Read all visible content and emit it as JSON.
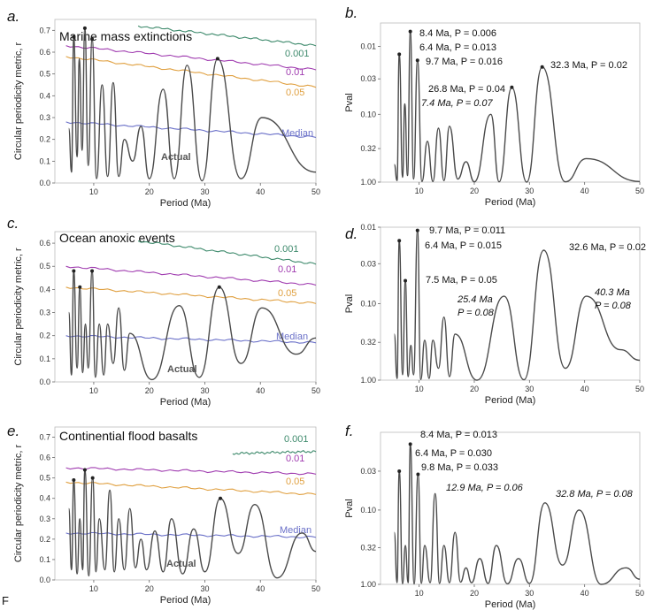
{
  "footer_letter": "F",
  "colors": {
    "curve": "#4a4a4a",
    "c001": "#3e8a6c",
    "c01": "#a03cb0",
    "c05": "#e0a040",
    "median": "#6a70c8"
  },
  "chart_data": [
    {
      "id": "a",
      "type": "line",
      "panel_label": "a.",
      "title": "Marine mass extinctions",
      "xlabel": "Period (Ma)",
      "ylabel": "Circular periodicity metric, r",
      "xlim": [
        3,
        50
      ],
      "ylim": [
        0,
        0.75
      ],
      "xticks": [
        "10",
        "20",
        "30",
        "40",
        "50"
      ],
      "yticks": [
        "0.0",
        "0.1",
        "0.2",
        "0.3",
        "0.4",
        "0.5",
        "0.6",
        "0.7"
      ],
      "actual_label": "Actual",
      "thresholds": [
        {
          "name": "0.001",
          "x": [
            18,
            50
          ],
          "y": [
            0.72,
            0.63
          ]
        },
        {
          "name": "0.01",
          "x": [
            5,
            50
          ],
          "y": [
            0.63,
            0.52
          ]
        },
        {
          "name": "0.05",
          "x": [
            5,
            50
          ],
          "y": [
            0.58,
            0.44
          ]
        },
        {
          "name": "Median",
          "x": [
            5,
            50
          ],
          "y": [
            0.28,
            0.21
          ]
        }
      ],
      "peaks": [
        {
          "x": 5.5,
          "y": 0.25
        },
        {
          "x": 6.4,
          "y": 0.67
        },
        {
          "x": 7.4,
          "y": 0.57
        },
        {
          "x": 8.4,
          "y": 0.71
        },
        {
          "x": 9.7,
          "y": 0.66
        },
        {
          "x": 11.5,
          "y": 0.45
        },
        {
          "x": 13.5,
          "y": 0.46
        },
        {
          "x": 15.5,
          "y": 0.2
        },
        {
          "x": 18.5,
          "y": 0.26
        },
        {
          "x": 22.5,
          "y": 0.43
        },
        {
          "x": 26.8,
          "y": 0.54
        },
        {
          "x": 32.3,
          "y": 0.57
        },
        {
          "x": 40.3,
          "y": 0.3
        },
        {
          "x": 50,
          "y": 0.05
        }
      ],
      "troughs": [
        {
          "x": 6.0,
          "y": 0.05
        },
        {
          "x": 7.0,
          "y": 0.12
        },
        {
          "x": 7.9,
          "y": 0.15
        },
        {
          "x": 9.0,
          "y": 0.08
        },
        {
          "x": 10.5,
          "y": 0.02
        },
        {
          "x": 12.5,
          "y": 0.03
        },
        {
          "x": 14.5,
          "y": 0.03
        },
        {
          "x": 17.0,
          "y": 0.1
        },
        {
          "x": 20.0,
          "y": 0.02
        },
        {
          "x": 24.5,
          "y": 0.02
        },
        {
          "x": 29.5,
          "y": 0.01
        },
        {
          "x": 36.5,
          "y": 0.02
        }
      ],
      "marked": [
        {
          "x": 6.4,
          "y": 0.67
        },
        {
          "x": 8.4,
          "y": 0.71
        },
        {
          "x": 9.7,
          "y": 0.66
        },
        {
          "x": 32.3,
          "y": 0.57
        }
      ]
    },
    {
      "id": "b",
      "type": "line",
      "panel_label": "b.",
      "xlabel": "Period (Ma)",
      "ylabel": "Pval",
      "xlim": [
        3,
        50
      ],
      "y_scale": "log",
      "ylim": [
        1.0,
        0.0045
      ],
      "xticks": [
        "10",
        "20",
        "30",
        "40",
        "50"
      ],
      "ytick_values": [
        0.01,
        0.03,
        0.1,
        0.32,
        1.0
      ],
      "yticks": [
        "0.01",
        "0.03",
        "0.10",
        "0.32",
        "1.00"
      ],
      "peaks": [
        {
          "x": 5.5,
          "y": 0.55
        },
        {
          "x": 6.4,
          "y": 0.013
        },
        {
          "x": 7.4,
          "y": 0.07
        },
        {
          "x": 8.4,
          "y": 0.006
        },
        {
          "x": 9.7,
          "y": 0.016
        },
        {
          "x": 11.5,
          "y": 0.25
        },
        {
          "x": 13.5,
          "y": 0.16
        },
        {
          "x": 15.5,
          "y": 0.15
        },
        {
          "x": 18.5,
          "y": 0.5
        },
        {
          "x": 23.0,
          "y": 0.1
        },
        {
          "x": 26.8,
          "y": 0.04
        },
        {
          "x": 32.3,
          "y": 0.02
        },
        {
          "x": 40.3,
          "y": 0.45
        },
        {
          "x": 50,
          "y": 0.98
        }
      ],
      "troughs": [
        {
          "x": 6.0,
          "y": 0.95
        },
        {
          "x": 7.0,
          "y": 0.85
        },
        {
          "x": 7.9,
          "y": 0.8
        },
        {
          "x": 9.0,
          "y": 0.9
        },
        {
          "x": 10.5,
          "y": 0.98
        },
        {
          "x": 12.5,
          "y": 0.98
        },
        {
          "x": 14.5,
          "y": 0.95
        },
        {
          "x": 17.0,
          "y": 0.9
        },
        {
          "x": 20.0,
          "y": 0.99
        },
        {
          "x": 24.5,
          "y": 0.99
        },
        {
          "x": 29.5,
          "y": 1.0
        },
        {
          "x": 36.5,
          "y": 0.99
        }
      ],
      "marked": [
        {
          "x": 6.4,
          "y": 0.013
        },
        {
          "x": 8.4,
          "y": 0.006
        },
        {
          "x": 9.7,
          "y": 0.016
        },
        {
          "x": 26.8,
          "y": 0.04
        },
        {
          "x": 32.3,
          "y": 0.02
        }
      ],
      "annotations": [
        {
          "text": "8.4 Ma, P = 0.006",
          "italic": false
        },
        {
          "text": "6.4 Ma, P = 0.013",
          "italic": false
        },
        {
          "text": "9.7 Ma, P = 0.016",
          "italic": false
        },
        {
          "text": "32.3 Ma, P = 0.02",
          "italic": false
        },
        {
          "text": "26.8 Ma, P = 0.04",
          "italic": false
        },
        {
          "text": "7.4 Ma, P = 0.07",
          "italic": true
        }
      ]
    },
    {
      "id": "c",
      "type": "line",
      "panel_label": "c.",
      "title": "Ocean anoxic events",
      "xlabel": "Period (Ma)",
      "ylabel": "Circular periodicity metric, r",
      "xlim": [
        3,
        50
      ],
      "ylim": [
        0,
        0.65
      ],
      "xticks": [
        "10",
        "20",
        "30",
        "40",
        "50"
      ],
      "yticks": [
        "0.0",
        "0.1",
        "0.2",
        "0.3",
        "0.4",
        "0.5",
        "0.6"
      ],
      "actual_label": "Actual",
      "thresholds": [
        {
          "name": "0.001",
          "x": [
            18,
            50
          ],
          "y": [
            0.61,
            0.51
          ]
        },
        {
          "name": "0.01",
          "x": [
            5,
            50
          ],
          "y": [
            0.5,
            0.42
          ]
        },
        {
          "name": "0.05",
          "x": [
            5,
            50
          ],
          "y": [
            0.41,
            0.34
          ]
        },
        {
          "name": "Median",
          "x": [
            5,
            50
          ],
          "y": [
            0.2,
            0.17
          ]
        }
      ],
      "peaks": [
        {
          "x": 5.5,
          "y": 0.3
        },
        {
          "x": 6.4,
          "y": 0.48
        },
        {
          "x": 7.5,
          "y": 0.41
        },
        {
          "x": 8.5,
          "y": 0.25
        },
        {
          "x": 9.7,
          "y": 0.48
        },
        {
          "x": 11.0,
          "y": 0.25
        },
        {
          "x": 12.5,
          "y": 0.25
        },
        {
          "x": 14.5,
          "y": 0.32
        },
        {
          "x": 16.5,
          "y": 0.21
        },
        {
          "x": 25.4,
          "y": 0.33
        },
        {
          "x": 32.6,
          "y": 0.41
        },
        {
          "x": 40.3,
          "y": 0.32
        },
        {
          "x": 50,
          "y": 0.19
        }
      ],
      "troughs": [
        {
          "x": 6.0,
          "y": 0.03
        },
        {
          "x": 7.0,
          "y": 0.06
        },
        {
          "x": 8.0,
          "y": 0.04
        },
        {
          "x": 9.0,
          "y": 0.06
        },
        {
          "x": 10.3,
          "y": 0.02
        },
        {
          "x": 11.8,
          "y": 0.03
        },
        {
          "x": 13.5,
          "y": 0.08
        },
        {
          "x": 15.5,
          "y": 0.05
        },
        {
          "x": 20.5,
          "y": 0.01
        },
        {
          "x": 29.0,
          "y": 0.02
        },
        {
          "x": 36.5,
          "y": 0.08
        },
        {
          "x": 46.5,
          "y": 0.12
        }
      ],
      "marked": [
        {
          "x": 6.4,
          "y": 0.48
        },
        {
          "x": 7.5,
          "y": 0.41
        },
        {
          "x": 9.7,
          "y": 0.48
        },
        {
          "x": 32.6,
          "y": 0.41
        }
      ]
    },
    {
      "id": "d",
      "type": "line",
      "panel_label": "d.",
      "xlabel": "Period (Ma)",
      "ylabel": "Pval",
      "xlim": [
        3,
        50
      ],
      "y_scale": "log",
      "ylim": [
        1.0,
        0.01
      ],
      "xticks": [
        "10",
        "20",
        "30",
        "40",
        "50"
      ],
      "ytick_values": [
        0.01,
        0.03,
        0.1,
        0.32,
        1.0
      ],
      "yticks": [
        "0.01",
        "0.03",
        "0.10",
        "0.32",
        "1.00"
      ],
      "peaks": [
        {
          "x": 5.5,
          "y": 0.25
        },
        {
          "x": 6.4,
          "y": 0.015
        },
        {
          "x": 7.5,
          "y": 0.05
        },
        {
          "x": 8.5,
          "y": 0.35
        },
        {
          "x": 9.7,
          "y": 0.011
        },
        {
          "x": 11.0,
          "y": 0.3
        },
        {
          "x": 12.5,
          "y": 0.3
        },
        {
          "x": 14.5,
          "y": 0.15
        },
        {
          "x": 16.5,
          "y": 0.25
        },
        {
          "x": 25.4,
          "y": 0.08
        },
        {
          "x": 32.6,
          "y": 0.02
        },
        {
          "x": 40.3,
          "y": 0.08
        },
        {
          "x": 50,
          "y": 0.55
        }
      ],
      "troughs": [
        {
          "x": 6.0,
          "y": 0.95
        },
        {
          "x": 7.0,
          "y": 0.85
        },
        {
          "x": 8.0,
          "y": 0.9
        },
        {
          "x": 9.0,
          "y": 0.85
        },
        {
          "x": 10.3,
          "y": 0.98
        },
        {
          "x": 11.8,
          "y": 0.95
        },
        {
          "x": 13.5,
          "y": 0.7
        },
        {
          "x": 15.5,
          "y": 0.9
        },
        {
          "x": 20.5,
          "y": 1.0
        },
        {
          "x": 29.0,
          "y": 0.99
        },
        {
          "x": 36.5,
          "y": 0.7
        },
        {
          "x": 46.5,
          "y": 0.4
        }
      ],
      "marked": [
        {
          "x": 6.4,
          "y": 0.015
        },
        {
          "x": 7.5,
          "y": 0.05
        },
        {
          "x": 9.7,
          "y": 0.011
        }
      ],
      "annotations": [
        {
          "text": "9.7 Ma, P = 0.011",
          "italic": false
        },
        {
          "text": "6.4 Ma, P = 0.015",
          "italic": false
        },
        {
          "text": "32.6 Ma, P = 0.02",
          "italic": false
        },
        {
          "text": "7.5 Ma, P = 0.05",
          "italic": false
        },
        {
          "text": "25.4 Ma",
          "italic": true
        },
        {
          "text": "P = 0.08",
          "italic": true
        },
        {
          "text": "40.3 Ma",
          "italic": true
        },
        {
          "text": "P = 0.08",
          "italic": true
        }
      ]
    },
    {
      "id": "e",
      "type": "line",
      "panel_label": "e.",
      "title": "Continential flood basalts",
      "xlabel": "Period (Ma)",
      "ylabel": "Circular periodicity metric, r",
      "xlim": [
        3,
        50
      ],
      "ylim": [
        0,
        0.75
      ],
      "xticks": [
        "10",
        "20",
        "30",
        "40",
        "50"
      ],
      "yticks": [
        "0.0",
        "0.1",
        "0.2",
        "0.3",
        "0.4",
        "0.5",
        "0.6",
        "0.7"
      ],
      "actual_label": "Actual",
      "thresholds": [
        {
          "name": "0.001",
          "x": [
            35,
            50
          ],
          "y": [
            0.62,
            0.63
          ]
        },
        {
          "name": "0.01",
          "x": [
            5,
            50
          ],
          "y": [
            0.55,
            0.52
          ]
        },
        {
          "name": "0.05",
          "x": [
            5,
            50
          ],
          "y": [
            0.48,
            0.42
          ]
        },
        {
          "name": "Median",
          "x": [
            5,
            50
          ],
          "y": [
            0.23,
            0.21
          ]
        }
      ],
      "peaks": [
        {
          "x": 5.5,
          "y": 0.35
        },
        {
          "x": 6.4,
          "y": 0.49
        },
        {
          "x": 7.5,
          "y": 0.3
        },
        {
          "x": 8.4,
          "y": 0.54
        },
        {
          "x": 9.8,
          "y": 0.5
        },
        {
          "x": 11.0,
          "y": 0.3
        },
        {
          "x": 12.9,
          "y": 0.44
        },
        {
          "x": 14.5,
          "y": 0.3
        },
        {
          "x": 16.5,
          "y": 0.35
        },
        {
          "x": 18.5,
          "y": 0.2
        },
        {
          "x": 21.0,
          "y": 0.24
        },
        {
          "x": 24.0,
          "y": 0.3
        },
        {
          "x": 28.0,
          "y": 0.25
        },
        {
          "x": 32.8,
          "y": 0.4
        },
        {
          "x": 39.0,
          "y": 0.37
        },
        {
          "x": 47.5,
          "y": 0.23
        },
        {
          "x": 50,
          "y": 0.14
        }
      ],
      "troughs": [
        {
          "x": 6.0,
          "y": 0.05
        },
        {
          "x": 7.0,
          "y": 0.03
        },
        {
          "x": 8.0,
          "y": 0.05
        },
        {
          "x": 9.1,
          "y": 0.02
        },
        {
          "x": 10.4,
          "y": 0.04
        },
        {
          "x": 12.0,
          "y": 0.05
        },
        {
          "x": 13.7,
          "y": 0.04
        },
        {
          "x": 15.5,
          "y": 0.05
        },
        {
          "x": 17.5,
          "y": 0.06
        },
        {
          "x": 19.5,
          "y": 0.05
        },
        {
          "x": 22.5,
          "y": 0.04
        },
        {
          "x": 26.0,
          "y": 0.03
        },
        {
          "x": 30.0,
          "y": 0.04
        },
        {
          "x": 36.0,
          "y": 0.13
        },
        {
          "x": 43.0,
          "y": 0.01
        }
      ],
      "marked": [
        {
          "x": 6.4,
          "y": 0.49
        },
        {
          "x": 8.4,
          "y": 0.54
        },
        {
          "x": 9.8,
          "y": 0.5
        },
        {
          "x": 32.8,
          "y": 0.4
        }
      ]
    },
    {
      "id": "f",
      "type": "line",
      "panel_label": "f.",
      "xlabel": "Period (Ma)",
      "ylabel": "Pval",
      "xlim": [
        3,
        50
      ],
      "y_scale": "log",
      "ylim": [
        1.0,
        0.009
      ],
      "xticks": [
        "10",
        "20",
        "30",
        "40",
        "50"
      ],
      "ytick_values": [
        0.03,
        0.1,
        0.32,
        1.0
      ],
      "yticks": [
        "0.03",
        "0.10",
        "0.32",
        "1.00"
      ],
      "peaks": [
        {
          "x": 5.5,
          "y": 0.2
        },
        {
          "x": 6.4,
          "y": 0.03
        },
        {
          "x": 7.5,
          "y": 0.3
        },
        {
          "x": 8.4,
          "y": 0.013
        },
        {
          "x": 9.8,
          "y": 0.033
        },
        {
          "x": 11.0,
          "y": 0.3
        },
        {
          "x": 12.9,
          "y": 0.06
        },
        {
          "x": 14.5,
          "y": 0.3
        },
        {
          "x": 16.5,
          "y": 0.2
        },
        {
          "x": 18.5,
          "y": 0.6
        },
        {
          "x": 21.0,
          "y": 0.45
        },
        {
          "x": 24.0,
          "y": 0.3
        },
        {
          "x": 28.0,
          "y": 0.45
        },
        {
          "x": 32.8,
          "y": 0.08
        },
        {
          "x": 39.0,
          "y": 0.1
        },
        {
          "x": 47.5,
          "y": 0.6
        },
        {
          "x": 50,
          "y": 0.85
        }
      ],
      "troughs": [
        {
          "x": 6.0,
          "y": 0.95
        },
        {
          "x": 7.0,
          "y": 0.98
        },
        {
          "x": 8.0,
          "y": 0.95
        },
        {
          "x": 9.1,
          "y": 0.99
        },
        {
          "x": 10.4,
          "y": 0.97
        },
        {
          "x": 12.0,
          "y": 0.95
        },
        {
          "x": 13.7,
          "y": 0.97
        },
        {
          "x": 15.5,
          "y": 0.95
        },
        {
          "x": 17.5,
          "y": 0.93
        },
        {
          "x": 19.5,
          "y": 0.95
        },
        {
          "x": 22.5,
          "y": 0.97
        },
        {
          "x": 26.0,
          "y": 0.98
        },
        {
          "x": 30.0,
          "y": 0.97
        },
        {
          "x": 36.0,
          "y": 0.55
        },
        {
          "x": 43.0,
          "y": 1.0
        }
      ],
      "marked": [
        {
          "x": 6.4,
          "y": 0.03
        },
        {
          "x": 8.4,
          "y": 0.013
        },
        {
          "x": 9.8,
          "y": 0.033
        }
      ],
      "annotations": [
        {
          "text": "8.4 Ma, P = 0.013",
          "italic": false
        },
        {
          "text": "6.4 Ma, P = 0.030",
          "italic": false
        },
        {
          "text": "9.8 Ma, P = 0.033",
          "italic": false
        },
        {
          "text": "12.9 Ma, P = 0.06",
          "italic": true
        },
        {
          "text": "32.8 Ma, P = 0.08",
          "italic": true
        }
      ]
    }
  ]
}
